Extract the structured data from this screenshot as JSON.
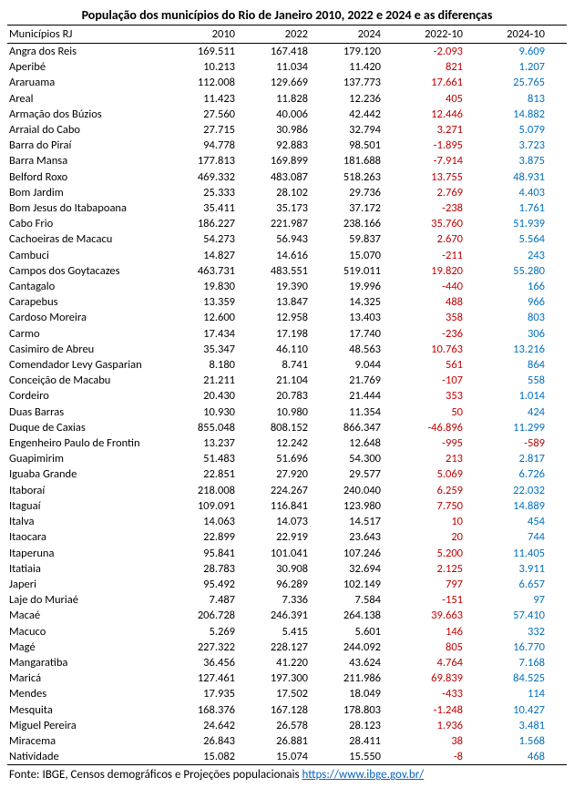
{
  "title": "População dos municípios do Rio de Janeiro 2010, 2022 e 2024 e as diferenças",
  "header": {
    "name": "Municípios RJ",
    "y2010": "2010",
    "y2022": "2022",
    "y2024": "2024",
    "d1": "2022-10",
    "d2": "2024-10"
  },
  "colors": {
    "negative": "#c00000",
    "positive_d1": "#c00000",
    "d2": "#0070c0",
    "d2_negative": "#c00000"
  },
  "rows": [
    {
      "name": "Angra dos Reis",
      "y2010": "169.511",
      "y2022": "167.418",
      "y2024": "179.120",
      "d1": "-2.093",
      "d2": "9.609"
    },
    {
      "name": "Aperibé",
      "y2010": "10.213",
      "y2022": "11.034",
      "y2024": "11.420",
      "d1": "821",
      "d2": "1.207"
    },
    {
      "name": "Araruama",
      "y2010": "112.008",
      "y2022": "129.669",
      "y2024": "137.773",
      "d1": "17.661",
      "d2": "25.765"
    },
    {
      "name": "Areal",
      "y2010": "11.423",
      "y2022": "11.828",
      "y2024": "12.236",
      "d1": "405",
      "d2": "813"
    },
    {
      "name": "Armação dos Búzios",
      "y2010": "27.560",
      "y2022": "40.006",
      "y2024": "42.442",
      "d1": "12.446",
      "d2": "14.882"
    },
    {
      "name": "Arraial do Cabo",
      "y2010": "27.715",
      "y2022": "30.986",
      "y2024": "32.794",
      "d1": "3.271",
      "d2": "5.079"
    },
    {
      "name": "Barra do Piraí",
      "y2010": "94.778",
      "y2022": "92.883",
      "y2024": "98.501",
      "d1": "-1.895",
      "d2": "3.723"
    },
    {
      "name": "Barra Mansa",
      "y2010": "177.813",
      "y2022": "169.899",
      "y2024": "181.688",
      "d1": "-7.914",
      "d2": "3.875"
    },
    {
      "name": "Belford Roxo",
      "y2010": "469.332",
      "y2022": "483.087",
      "y2024": "518.263",
      "d1": "13.755",
      "d2": "48.931"
    },
    {
      "name": "Bom Jardim",
      "y2010": "25.333",
      "y2022": "28.102",
      "y2024": "29.736",
      "d1": "2.769",
      "d2": "4.403"
    },
    {
      "name": "Bom Jesus do Itabapoana",
      "y2010": "35.411",
      "y2022": "35.173",
      "y2024": "37.172",
      "d1": "-238",
      "d2": "1.761"
    },
    {
      "name": "Cabo Frio",
      "y2010": "186.227",
      "y2022": "221.987",
      "y2024": "238.166",
      "d1": "35.760",
      "d2": "51.939"
    },
    {
      "name": "Cachoeiras de Macacu",
      "y2010": "54.273",
      "y2022": "56.943",
      "y2024": "59.837",
      "d1": "2.670",
      "d2": "5.564"
    },
    {
      "name": "Cambuci",
      "y2010": "14.827",
      "y2022": "14.616",
      "y2024": "15.070",
      "d1": "-211",
      "d2": "243"
    },
    {
      "name": "Campos dos Goytacazes",
      "y2010": "463.731",
      "y2022": "483.551",
      "y2024": "519.011",
      "d1": "19.820",
      "d2": "55.280"
    },
    {
      "name": "Cantagalo",
      "y2010": "19.830",
      "y2022": "19.390",
      "y2024": "19.996",
      "d1": "-440",
      "d2": "166"
    },
    {
      "name": "Carapebus",
      "y2010": "13.359",
      "y2022": "13.847",
      "y2024": "14.325",
      "d1": "488",
      "d2": "966"
    },
    {
      "name": "Cardoso Moreira",
      "y2010": "12.600",
      "y2022": "12.958",
      "y2024": "13.403",
      "d1": "358",
      "d2": "803"
    },
    {
      "name": "Carmo",
      "y2010": "17.434",
      "y2022": "17.198",
      "y2024": "17.740",
      "d1": "-236",
      "d2": "306"
    },
    {
      "name": "Casimiro de Abreu",
      "y2010": "35.347",
      "y2022": "46.110",
      "y2024": "48.563",
      "d1": "10.763",
      "d2": "13.216"
    },
    {
      "name": "Comendador Levy Gasparian",
      "y2010": "8.180",
      "y2022": "8.741",
      "y2024": "9.044",
      "d1": "561",
      "d2": "864"
    },
    {
      "name": "Conceição de Macabu",
      "y2010": "21.211",
      "y2022": "21.104",
      "y2024": "21.769",
      "d1": "-107",
      "d2": "558"
    },
    {
      "name": "Cordeiro",
      "y2010": "20.430",
      "y2022": "20.783",
      "y2024": "21.444",
      "d1": "353",
      "d2": "1.014"
    },
    {
      "name": "Duas Barras",
      "y2010": "10.930",
      "y2022": "10.980",
      "y2024": "11.354",
      "d1": "50",
      "d2": "424"
    },
    {
      "name": "Duque de Caxias",
      "y2010": "855.048",
      "y2022": "808.152",
      "y2024": "866.347",
      "d1": "-46.896",
      "d2": "11.299"
    },
    {
      "name": "Engenheiro Paulo de Frontin",
      "y2010": "13.237",
      "y2022": "12.242",
      "y2024": "12.648",
      "d1": "-995",
      "d2": "-589"
    },
    {
      "name": "Guapimirim",
      "y2010": "51.483",
      "y2022": "51.696",
      "y2024": "54.300",
      "d1": "213",
      "d2": "2.817"
    },
    {
      "name": "Iguaba Grande",
      "y2010": "22.851",
      "y2022": "27.920",
      "y2024": "29.577",
      "d1": "5.069",
      "d2": "6.726"
    },
    {
      "name": "Itaboraí",
      "y2010": "218.008",
      "y2022": "224.267",
      "y2024": "240.040",
      "d1": "6.259",
      "d2": "22.032"
    },
    {
      "name": "Itaguaí",
      "y2010": "109.091",
      "y2022": "116.841",
      "y2024": "123.980",
      "d1": "7.750",
      "d2": "14.889"
    },
    {
      "name": "Italva",
      "y2010": "14.063",
      "y2022": "14.073",
      "y2024": "14.517",
      "d1": "10",
      "d2": "454"
    },
    {
      "name": "Itaocara",
      "y2010": "22.899",
      "y2022": "22.919",
      "y2024": "23.643",
      "d1": "20",
      "d2": "744"
    },
    {
      "name": "Itaperuna",
      "y2010": "95.841",
      "y2022": "101.041",
      "y2024": "107.246",
      "d1": "5.200",
      "d2": "11.405"
    },
    {
      "name": "Itatiaia",
      "y2010": "28.783",
      "y2022": "30.908",
      "y2024": "32.694",
      "d1": "2.125",
      "d2": "3.911"
    },
    {
      "name": "Japeri",
      "y2010": "95.492",
      "y2022": "96.289",
      "y2024": "102.149",
      "d1": "797",
      "d2": "6.657"
    },
    {
      "name": "Laje do Muriaé",
      "y2010": "7.487",
      "y2022": "7.336",
      "y2024": "7.584",
      "d1": "-151",
      "d2": "97"
    },
    {
      "name": "Macaé",
      "y2010": "206.728",
      "y2022": "246.391",
      "y2024": "264.138",
      "d1": "39.663",
      "d2": "57.410"
    },
    {
      "name": "Macuco",
      "y2010": "5.269",
      "y2022": "5.415",
      "y2024": "5.601",
      "d1": "146",
      "d2": "332"
    },
    {
      "name": "Magé",
      "y2010": "227.322",
      "y2022": "228.127",
      "y2024": "244.092",
      "d1": "805",
      "d2": "16.770"
    },
    {
      "name": "Mangaratiba",
      "y2010": "36.456",
      "y2022": "41.220",
      "y2024": "43.624",
      "d1": "4.764",
      "d2": "7.168"
    },
    {
      "name": "Maricá",
      "y2010": "127.461",
      "y2022": "197.300",
      "y2024": "211.986",
      "d1": "69.839",
      "d2": "84.525"
    },
    {
      "name": "Mendes",
      "y2010": "17.935",
      "y2022": "17.502",
      "y2024": "18.049",
      "d1": "-433",
      "d2": "114"
    },
    {
      "name": "Mesquita",
      "y2010": "168.376",
      "y2022": "167.128",
      "y2024": "178.803",
      "d1": "-1.248",
      "d2": "10.427"
    },
    {
      "name": "Miguel Pereira",
      "y2010": "24.642",
      "y2022": "26.578",
      "y2024": "28.123",
      "d1": "1.936",
      "d2": "3.481"
    },
    {
      "name": "Miracema",
      "y2010": "26.843",
      "y2022": "26.881",
      "y2024": "28.411",
      "d1": "38",
      "d2": "1.568"
    },
    {
      "name": "Natividade",
      "y2010": "15.082",
      "y2022": "15.074",
      "y2024": "15.550",
      "d1": "-8",
      "d2": "468"
    }
  ],
  "footer": {
    "text": "Fonte: IBGE, Censos demográficos e Projeções populacionais  ",
    "link_text": "https://www.ibge.gov.br/",
    "link_href": "https://www.ibge.gov.br/"
  }
}
